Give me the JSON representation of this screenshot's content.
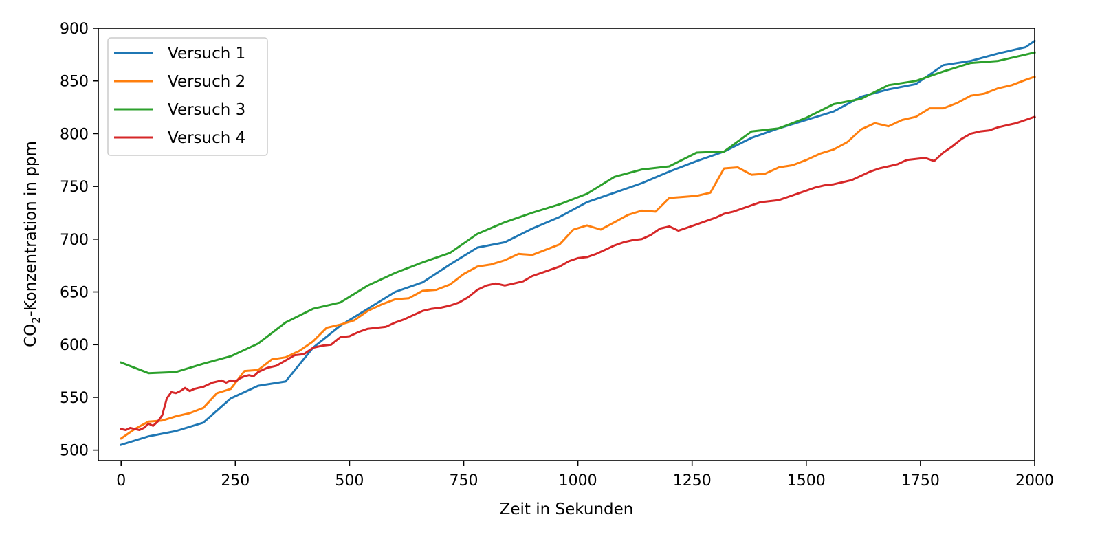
{
  "chart_data": {
    "type": "line",
    "title": "",
    "xlabel": "Zeit in Sekunden",
    "ylabel": "CO₂-Konzentration in ppm",
    "ylabel_parts": {
      "before": "CO",
      "subscript": "2",
      "after": "-Konzentration in ppm"
    },
    "xlim": [
      -50,
      2000
    ],
    "ylim": [
      490,
      900
    ],
    "xticks": [
      0,
      250,
      500,
      750,
      1000,
      1250,
      1500,
      1750,
      2000
    ],
    "yticks": [
      500,
      550,
      600,
      650,
      700,
      750,
      800,
      850,
      900
    ],
    "grid": false,
    "legend_position": "top-left",
    "series": [
      {
        "name": "Versuch 1",
        "color": "#1f77b4",
        "x": [
          0,
          60,
          120,
          180,
          240,
          300,
          360,
          420,
          480,
          540,
          600,
          660,
          720,
          780,
          840,
          900,
          960,
          1020,
          1080,
          1140,
          1200,
          1260,
          1320,
          1380,
          1440,
          1500,
          1560,
          1620,
          1680,
          1740,
          1800,
          1860,
          1920,
          1980,
          2000
        ],
        "y": [
          505,
          513,
          518,
          526,
          549,
          561,
          565,
          597,
          618,
          634,
          650,
          659,
          676,
          692,
          697,
          710,
          721,
          735,
          744,
          753,
          764,
          774,
          783,
          796,
          805,
          813,
          821,
          835,
          842,
          847,
          865,
          869,
          876,
          882,
          888
        ]
      },
      {
        "name": "Versuch 2",
        "color": "#ff7f0e",
        "x": [
          0,
          30,
          60,
          90,
          120,
          150,
          180,
          210,
          240,
          270,
          300,
          330,
          360,
          390,
          420,
          450,
          480,
          510,
          540,
          570,
          600,
          630,
          660,
          690,
          720,
          750,
          780,
          810,
          840,
          870,
          900,
          930,
          960,
          990,
          1020,
          1050,
          1080,
          1110,
          1140,
          1170,
          1200,
          1230,
          1260,
          1290,
          1320,
          1350,
          1380,
          1410,
          1440,
          1470,
          1500,
          1530,
          1560,
          1590,
          1620,
          1650,
          1680,
          1710,
          1740,
          1770,
          1800,
          1830,
          1860,
          1890,
          1920,
          1950,
          1980,
          2000
        ],
        "y": [
          511,
          520,
          527,
          528,
          532,
          535,
          540,
          554,
          558,
          575,
          576,
          586,
          588,
          594,
          603,
          616,
          619,
          623,
          632,
          638,
          643,
          644,
          651,
          652,
          657,
          667,
          674,
          676,
          680,
          686,
          685,
          690,
          695,
          709,
          713,
          709,
          716,
          723,
          727,
          726,
          739,
          740,
          741,
          744,
          767,
          768,
          761,
          762,
          768,
          770,
          775,
          781,
          785,
          792,
          804,
          810,
          807,
          813,
          816,
          824,
          824,
          829,
          836,
          838,
          843,
          846,
          851,
          854
        ]
      },
      {
        "name": "Versuch 3",
        "color": "#2ca02c",
        "x": [
          0,
          60,
          120,
          180,
          240,
          300,
          360,
          420,
          480,
          540,
          600,
          660,
          720,
          780,
          840,
          900,
          960,
          1020,
          1080,
          1140,
          1200,
          1260,
          1320,
          1380,
          1440,
          1500,
          1560,
          1620,
          1680,
          1740,
          1800,
          1860,
          1920,
          1980,
          2000
        ],
        "y": [
          583,
          573,
          574,
          582,
          589,
          601,
          621,
          634,
          640,
          656,
          668,
          678,
          687,
          705,
          716,
          725,
          733,
          743,
          759,
          766,
          769,
          782,
          783,
          802,
          805,
          815,
          828,
          833,
          846,
          850,
          859,
          867,
          869,
          875,
          877
        ]
      },
      {
        "name": "Versuch 4",
        "color": "#d62728",
        "x": [
          0,
          10,
          20,
          30,
          40,
          50,
          60,
          70,
          80,
          90,
          100,
          110,
          120,
          130,
          140,
          150,
          160,
          170,
          180,
          190,
          200,
          210,
          220,
          230,
          240,
          250,
          260,
          270,
          280,
          290,
          300,
          320,
          340,
          360,
          380,
          400,
          420,
          440,
          460,
          480,
          500,
          520,
          540,
          560,
          580,
          600,
          620,
          640,
          660,
          680,
          700,
          720,
          740,
          760,
          780,
          800,
          820,
          840,
          860,
          880,
          900,
          920,
          940,
          960,
          980,
          1000,
          1020,
          1040,
          1060,
          1080,
          1100,
          1120,
          1140,
          1160,
          1180,
          1200,
          1220,
          1240,
          1260,
          1280,
          1300,
          1320,
          1340,
          1360,
          1380,
          1400,
          1420,
          1440,
          1460,
          1480,
          1500,
          1520,
          1540,
          1560,
          1580,
          1600,
          1620,
          1640,
          1660,
          1680,
          1700,
          1720,
          1740,
          1760,
          1780,
          1800,
          1820,
          1840,
          1860,
          1880,
          1900,
          1920,
          1940,
          1960,
          1980,
          2000
        ],
        "y": [
          520,
          519,
          521,
          520,
          519,
          521,
          525,
          523,
          527,
          533,
          549,
          555,
          554,
          556,
          559,
          556,
          558,
          559,
          560,
          562,
          564,
          565,
          566,
          564,
          566,
          565,
          568,
          570,
          571,
          570,
          574,
          578,
          580,
          585,
          590,
          591,
          597,
          599,
          600,
          607,
          608,
          612,
          615,
          616,
          617,
          621,
          624,
          628,
          632,
          634,
          635,
          637,
          640,
          645,
          652,
          656,
          658,
          656,
          658,
          660,
          665,
          668,
          671,
          674,
          679,
          682,
          683,
          686,
          690,
          694,
          697,
          699,
          700,
          704,
          710,
          712,
          708,
          711,
          714,
          717,
          720,
          724,
          726,
          729,
          732,
          735,
          736,
          737,
          740,
          743,
          746,
          749,
          751,
          752,
          754,
          756,
          760,
          764,
          767,
          769,
          771,
          775,
          776,
          777,
          774,
          782,
          788,
          795,
          800,
          802,
          803,
          806,
          808,
          810,
          813,
          816
        ]
      }
    ]
  }
}
